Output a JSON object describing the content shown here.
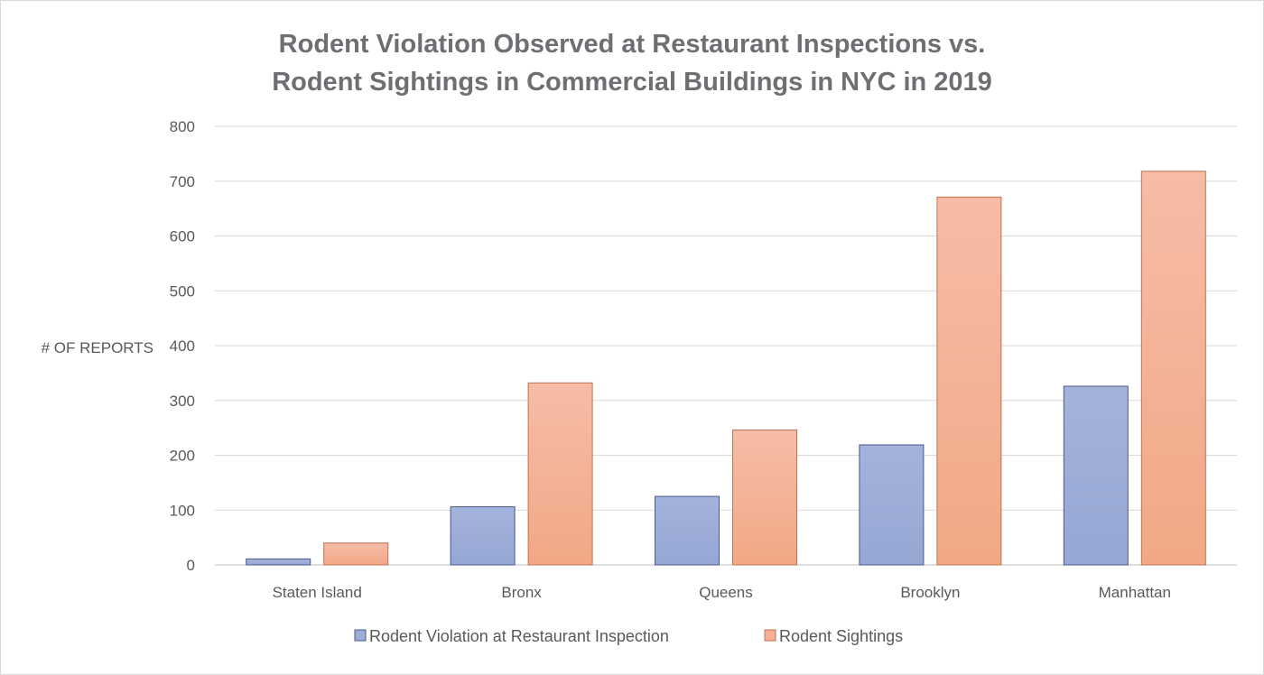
{
  "chart_data": {
    "type": "bar",
    "title_lines": [
      "Rodent Violation Observed at Restaurant Inspections vs.",
      "Rodent Sightings in Commercial Buildings in NYC in 2019"
    ],
    "xlabel": "",
    "ylabel": "# OF REPORTS",
    "ylim": [
      0,
      800
    ],
    "yticks": [
      "0",
      "100",
      "200",
      "300",
      "400",
      "500",
      "600",
      "700",
      "800"
    ],
    "categories": [
      "Staten Island",
      "Bronx",
      "Queens",
      "Brooklyn",
      "Manhattan"
    ],
    "series": [
      {
        "name": "Rodent Violation at Restaurant Inspection",
        "values": [
          11,
          106,
          125,
          219,
          326
        ],
        "color": "#9dadd8",
        "border": "#4a5a8a"
      },
      {
        "name": "Rodent Sightings",
        "values": [
          40,
          332,
          246,
          671,
          718
        ],
        "color": "#f4b196",
        "border": "#c0714e"
      }
    ],
    "grid": true,
    "legend_position": "bottom"
  }
}
